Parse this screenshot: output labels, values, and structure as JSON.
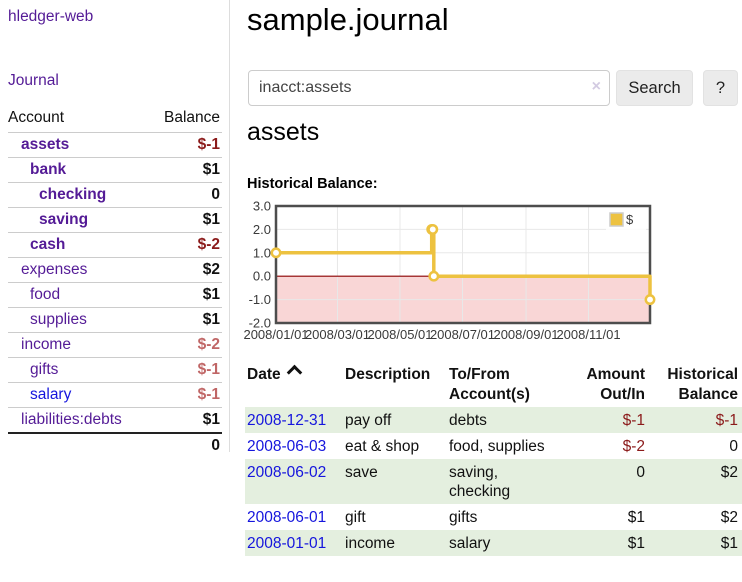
{
  "brand": "hledger-web",
  "nav": {
    "journal": "Journal"
  },
  "sidebar": {
    "header": {
      "account": "Account",
      "balance": "Balance"
    },
    "rows": [
      {
        "name": "assets",
        "level": 1,
        "current": true,
        "balance": "$-1",
        "neg": true
      },
      {
        "name": "bank",
        "level": 2,
        "current": true,
        "balance": "$1",
        "neg": false
      },
      {
        "name": "checking",
        "level": 3,
        "current": true,
        "balance": "0",
        "neg": false
      },
      {
        "name": "saving",
        "level": 3,
        "current": true,
        "balance": "$1",
        "neg": false
      },
      {
        "name": "cash",
        "level": 2,
        "current": true,
        "balance": "$-2",
        "neg": true
      },
      {
        "name": "expenses",
        "level": 1,
        "current": false,
        "balance": "$2",
        "neg": false
      },
      {
        "name": "food",
        "level": 2,
        "current": false,
        "balance": "$1",
        "neg": false
      },
      {
        "name": "supplies",
        "level": 2,
        "current": false,
        "balance": "$1",
        "neg": false
      },
      {
        "name": "income",
        "level": 1,
        "current": false,
        "balance": "$-2",
        "neg": true
      },
      {
        "name": "gifts",
        "level": 2,
        "current": false,
        "balance": "$-1",
        "neg": true
      },
      {
        "name": "salary",
        "level": 2,
        "current": false,
        "balance": "$-1",
        "neg": true,
        "link_color": "blue"
      },
      {
        "name": "liabilities:debts",
        "level": 1,
        "current": false,
        "balance": "$1",
        "neg": false
      }
    ],
    "total": "0"
  },
  "header": {
    "title": "sample.journal"
  },
  "search": {
    "value": "inacct:assets",
    "clear_icon": "×",
    "search_button": "Search",
    "help_button": "?"
  },
  "account_page": {
    "heading": "assets",
    "chart_title": "Historical Balance:"
  },
  "chart_data": {
    "type": "line",
    "step": true,
    "title": "Historical Balance:",
    "legend_label": "$",
    "legend_position": "top-right",
    "series": [
      {
        "name": "$",
        "color": "#edc240",
        "data": [
          [
            "2008-01-01",
            1
          ],
          [
            "2008-06-01",
            2
          ],
          [
            "2008-06-02",
            2
          ],
          [
            "2008-06-03",
            0
          ],
          [
            "2008-12-31",
            -1
          ]
        ]
      }
    ],
    "xlim": [
      "2008-01-01",
      "2008-12-31"
    ],
    "ylim": [
      -2,
      3
    ],
    "yticks": [
      3,
      2,
      1,
      0,
      -1,
      -2
    ],
    "ytick_labels": [
      "3.0",
      "2.0",
      "1.0",
      "0.0",
      "-1.0",
      "-2.0"
    ],
    "xtick_labels": [
      "2008/01/01",
      "2008/03/01",
      "2008/05/01",
      "2008/07/01",
      "2008/09/01",
      "2008/11/01"
    ],
    "grid": true,
    "negative_area_color": "#f9d6d6",
    "zero_line_color": "#8b0000"
  },
  "register": {
    "headers": {
      "date": "Date",
      "description": "Description",
      "tofrom": "To/From Account(s)",
      "amount": "Amount Out/In",
      "balance": "Historical Balance"
    },
    "rows": [
      {
        "date": "2008-12-31",
        "description": "pay off",
        "accounts": "debts",
        "amount": "$-1",
        "amount_neg": true,
        "balance": "$-1",
        "balance_neg": true
      },
      {
        "date": "2008-06-03",
        "description": "eat & shop",
        "accounts": "food, supplies",
        "amount": "$-2",
        "amount_neg": true,
        "balance": "0",
        "balance_neg": false
      },
      {
        "date": "2008-06-02",
        "description": "save",
        "accounts": "saving, checking",
        "amount": "0",
        "amount_neg": false,
        "balance": "$2",
        "balance_neg": false
      },
      {
        "date": "2008-06-01",
        "description": "gift",
        "accounts": "gifts",
        "amount": "$1",
        "amount_neg": false,
        "balance": "$2",
        "balance_neg": false
      },
      {
        "date": "2008-01-01",
        "description": "income",
        "accounts": "salary",
        "amount": "$1",
        "amount_neg": false,
        "balance": "$1",
        "balance_neg": false
      }
    ]
  },
  "colors": {
    "link_purple": "#541b96",
    "link_blue": "#1515dd",
    "negative_strong": "#8b1a1a",
    "negative_soft": "#c06666",
    "row_green": "#e4efdf",
    "chart_line": "#edc240",
    "chart_border": "#4d4d4d",
    "chart_grid": "#e8e8e8",
    "chart_negative_bg": "#f9d6d6",
    "chart_zero_line": "#8b0000"
  }
}
